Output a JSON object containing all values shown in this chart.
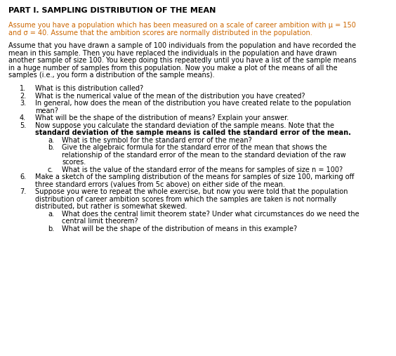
{
  "title": "PART I. SAMPLING DISTRIBUTION OF THE MEAN",
  "highlight_para_1": "Assume you have a population which has been measured on a scale of career ambition with μ = 150",
  "highlight_para_2": "and σ = 40. Assume that the ambition scores are normally distributed in the population.",
  "body_lines": [
    "Assume that you have drawn a sample of 100 individuals from the population and have recorded the",
    "mean in this sample. Then you have replaced the individuals in the population and have drawn",
    "another sample of size 100. You keep doing this repeatedly until you have a list of the sample means",
    "in a huge number of samples from this population. Now you make a plot of the means of all the",
    "samples (i.e., you form a distribution of the sample means)."
  ],
  "items": [
    {
      "num": "1.",
      "lines": [
        "What is this distribution called?"
      ],
      "subitems": []
    },
    {
      "num": "2.",
      "lines": [
        "What is the numerical value of the mean of the distribution you have created?"
      ],
      "subitems": []
    },
    {
      "num": "3.",
      "lines": [
        "In general, how does the mean of the distribution you have created relate to the population",
        "mean?"
      ],
      "subitems": []
    },
    {
      "num": "4.",
      "lines": [
        "What will be the shape of the distribution of means? Explain your answer."
      ],
      "subitems": []
    },
    {
      "num": "5.",
      "lines": [
        "Now suppose you calculate the standard deviation of the sample means. Note that the",
        "BOLD:standard deviation of the sample means is called the standard error of the mean."
      ],
      "subitems": [
        {
          "letter": "a.",
          "lines": [
            "What is the symbol for the standard error of the mean?"
          ]
        },
        {
          "letter": "b.",
          "lines": [
            "Give the algebraic formula for the standard error of the mean that shows the",
            "relationship of the standard error of the mean to the standard deviation of the raw",
            "scores."
          ]
        },
        {
          "letter": "c.",
          "lines": [
            "What is the value of the standard error of the means for samples of size n = 100?"
          ]
        }
      ]
    },
    {
      "num": "6.",
      "lines": [
        "Make a sketch of the sampling distribution of the means for samples of size 100, marking off",
        "three standard errors (values from 5c above) on either side of the mean."
      ],
      "subitems": []
    },
    {
      "num": "7.",
      "lines": [
        "Suppose you were to repeat the whole exercise, but now you were told that the population",
        "distribution of career ambition scores from which the samples are taken is not normally",
        "distributed, but rather is somewhat skewed."
      ],
      "subitems": [
        {
          "letter": "a.",
          "lines": [
            "What does the central limit theorem state? Under what circumstances do we need the",
            "central limit theorem?"
          ]
        },
        {
          "letter": "b.",
          "lines": [
            "What will be the shape of the distribution of means in this example?"
          ]
        }
      ]
    }
  ],
  "title_color": "#000000",
  "highlight_color": "#CC6600",
  "body_color": "#000000",
  "bg_color": "#FFFFFF",
  "font_size": 7.0,
  "title_font_size": 8.0
}
